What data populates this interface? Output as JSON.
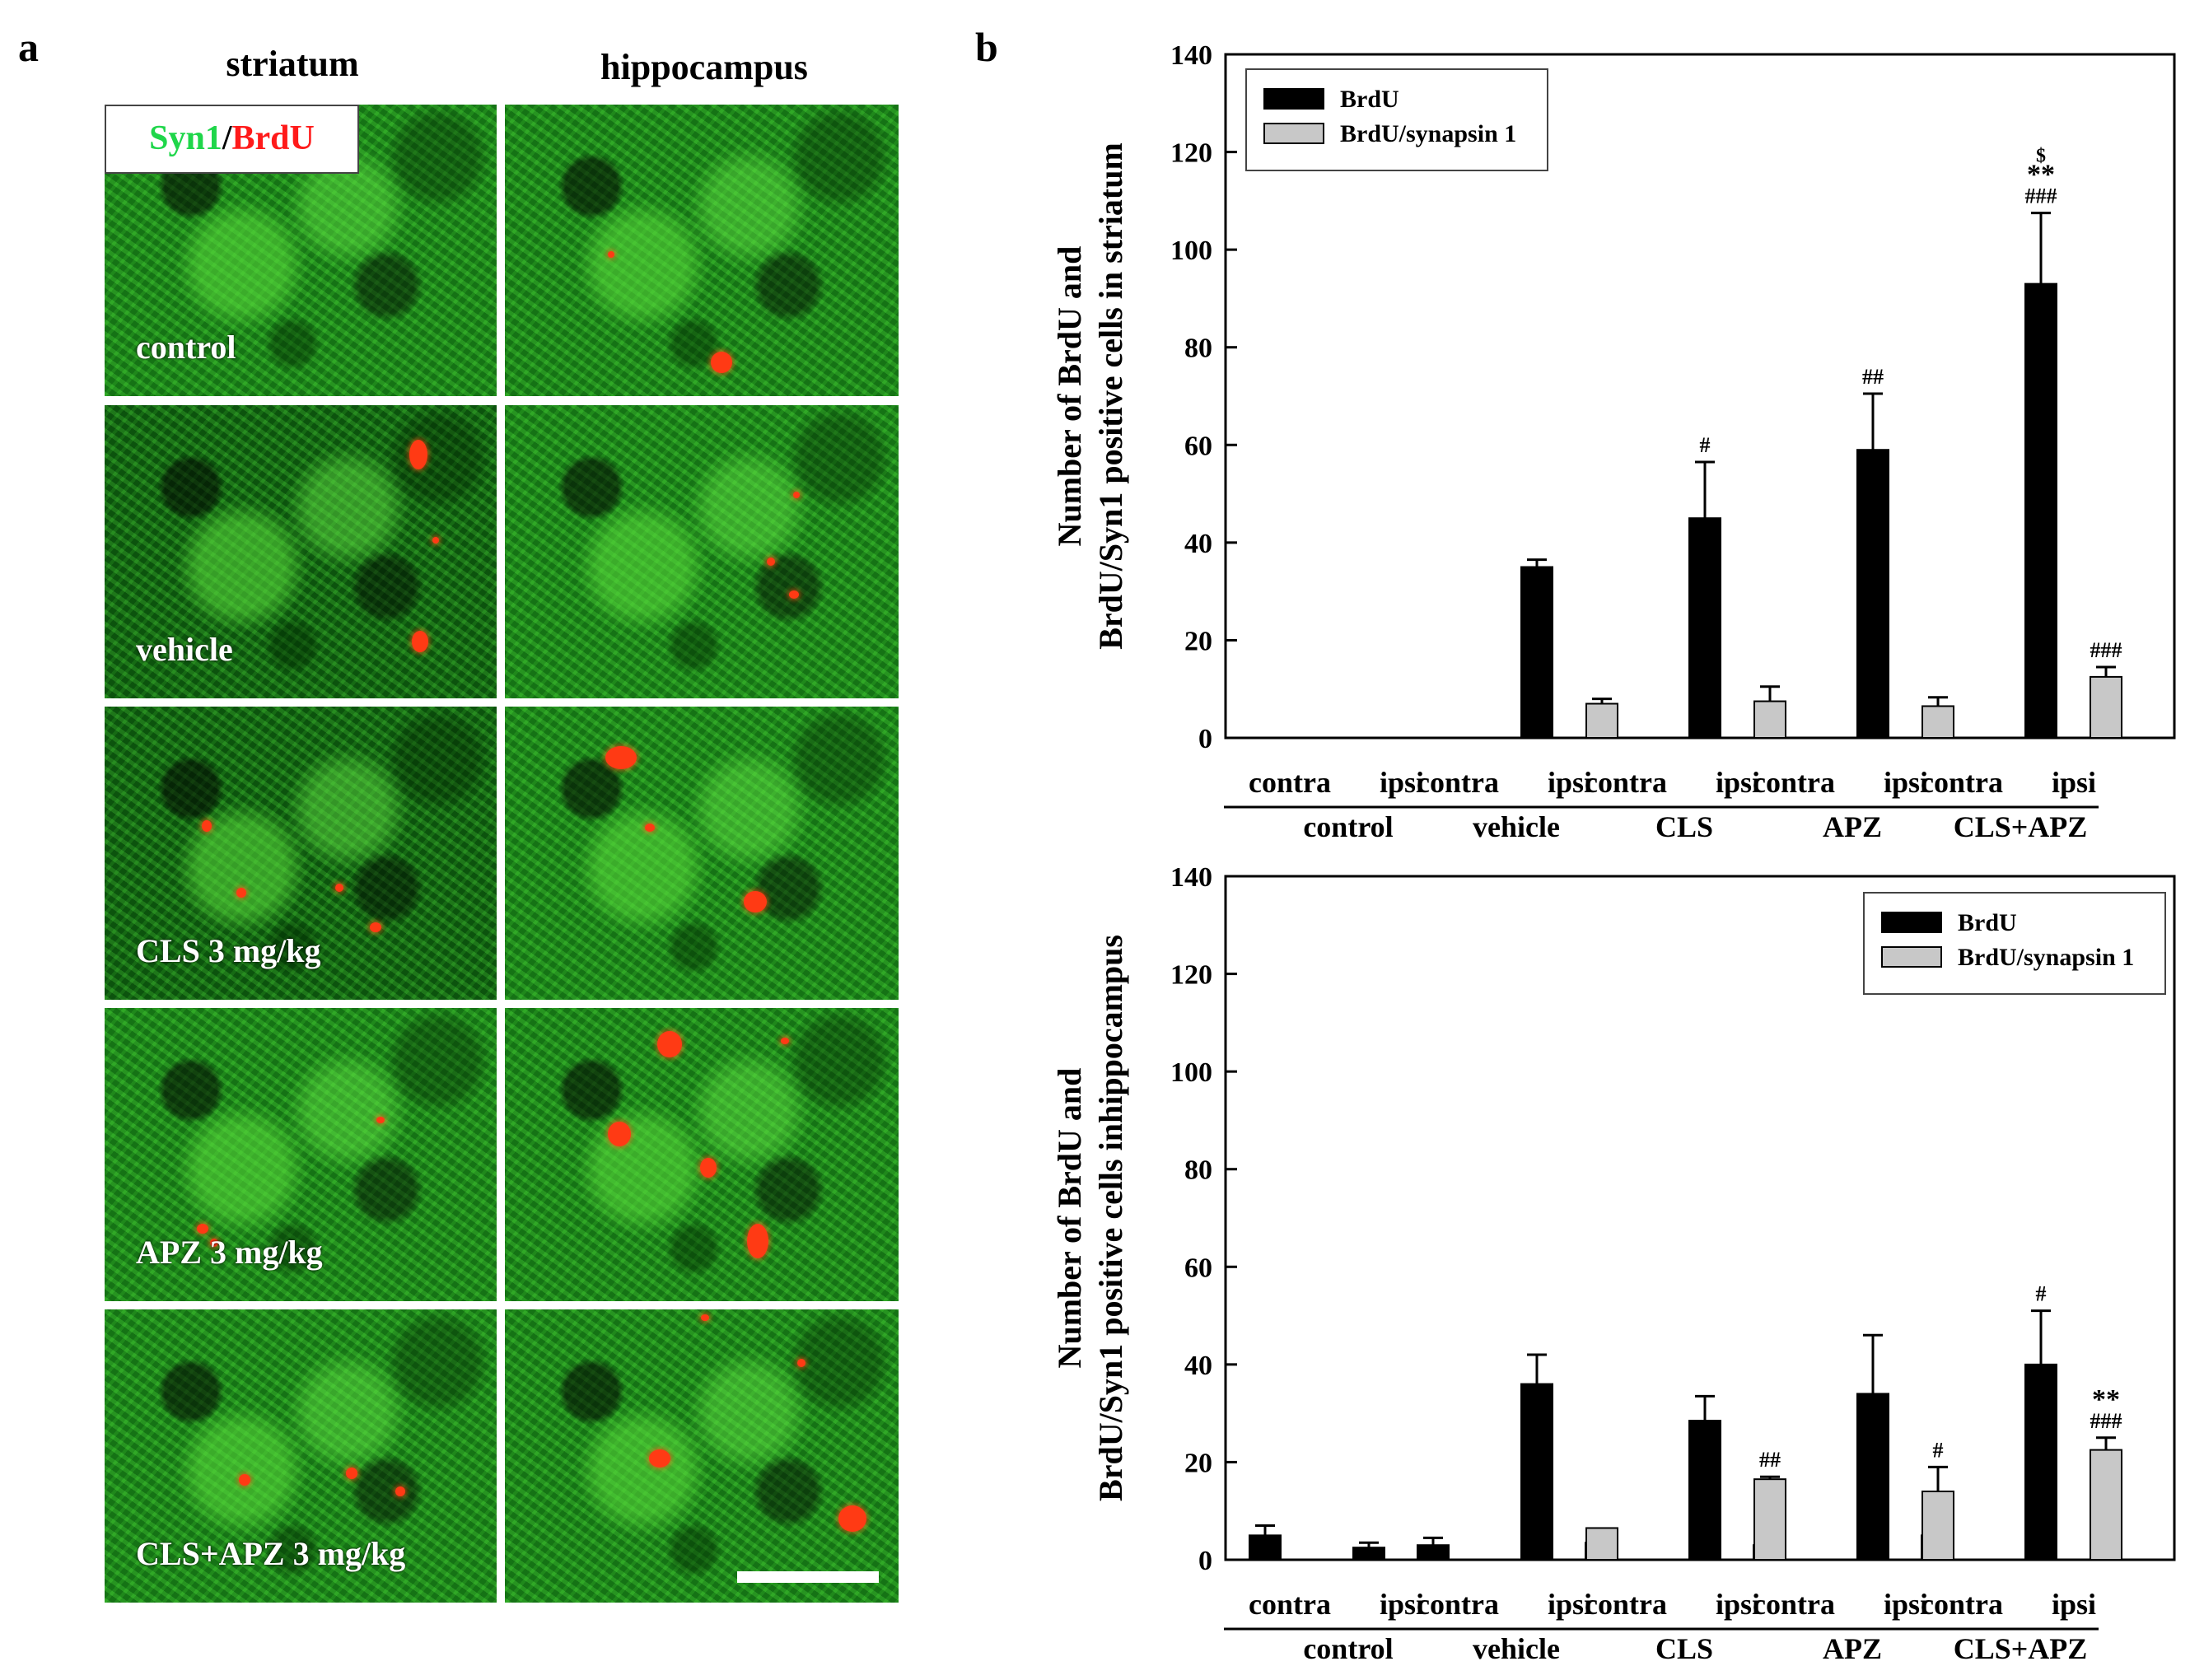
{
  "panel_a": {
    "letter": "a",
    "columns": [
      "striatum",
      "hippocampus"
    ],
    "legend": {
      "syn1": "Syn1",
      "sep": "/",
      "brdu": "BrdU"
    },
    "rows": [
      "control",
      "vehicle",
      "CLS 3 mg/kg",
      "APZ 3 mg/kg",
      "CLS+APZ 3 mg/kg"
    ]
  },
  "panel_b": {
    "letter": "b"
  },
  "colors": {
    "brdu": "#000000",
    "brdu_syn": "#c8c8c8",
    "green": "#1fd64a",
    "red": "#ff1a1a"
  },
  "chart_data": [
    {
      "type": "bar",
      "ylabel_lines": [
        "Number of BrdU and",
        "BrdU/Syn1 positive cells in striatum"
      ],
      "ylim": [
        0,
        140
      ],
      "yticks": [
        0,
        20,
        40,
        60,
        80,
        100,
        120,
        140
      ],
      "groups": [
        "control",
        "vehicle",
        "CLS",
        "APZ",
        "CLS+APZ"
      ],
      "sides": [
        "contra",
        "ipsi"
      ],
      "legend_position": "top-left",
      "series": [
        {
          "name": "BrdU",
          "values": [
            [
              0,
              0
            ],
            [
              0,
              35
            ],
            [
              0,
              45
            ],
            [
              0,
              59
            ],
            [
              0,
              93
            ]
          ],
          "errors": [
            [
              0,
              0
            ],
            [
              0,
              1.5
            ],
            [
              0,
              11.5
            ],
            [
              0,
              11.5
            ],
            [
              0,
              14.5
            ]
          ]
        },
        {
          "name": "BrdU/synapsin 1",
          "values": [
            [
              0,
              0
            ],
            [
              0,
              7
            ],
            [
              0,
              7.5
            ],
            [
              0,
              6.5
            ],
            [
              0,
              12.5
            ]
          ],
          "errors": [
            [
              0,
              0
            ],
            [
              0,
              1
            ],
            [
              0,
              3
            ],
            [
              0,
              1.8
            ],
            [
              0,
              2
            ]
          ]
        }
      ],
      "annotations": [
        {
          "group": 2,
          "side": 1,
          "series": 0,
          "lines": [
            "#"
          ]
        },
        {
          "group": 3,
          "side": 1,
          "series": 0,
          "lines": [
            "##"
          ]
        },
        {
          "group": 4,
          "side": 1,
          "series": 0,
          "lines": [
            "$",
            "**",
            "###"
          ]
        },
        {
          "group": 4,
          "side": 1,
          "series": 1,
          "lines": [
            "###"
          ]
        }
      ]
    },
    {
      "type": "bar",
      "ylabel_lines": [
        "Number of BrdU and",
        "BrdU/Syn1 positive cells inhippocampus"
      ],
      "ylim": [
        0,
        140
      ],
      "yticks": [
        0,
        20,
        40,
        60,
        80,
        100,
        120,
        140
      ],
      "groups": [
        "control",
        "vehicle",
        "CLS",
        "APZ",
        "CLS+APZ"
      ],
      "sides": [
        "contra",
        "ipsi"
      ],
      "legend_position": "top-right",
      "series": [
        {
          "name": "BrdU",
          "values": [
            [
              5,
              2.5
            ],
            [
              3,
              36
            ],
            [
              3.5,
              28.5
            ],
            [
              3,
              34
            ],
            [
              5,
              40
            ]
          ],
          "errors": [
            [
              2,
              1
            ],
            [
              1.5,
              6
            ],
            [
              1,
              5
            ],
            [
              1.5,
              12
            ],
            [
              0.5,
              11
            ]
          ]
        },
        {
          "name": "BrdU/synapsin 1",
          "values": [
            [
              0,
              0
            ],
            [
              0,
              6.5
            ],
            [
              0,
              16.5
            ],
            [
              0,
              14
            ],
            [
              0,
              22.5
            ]
          ],
          "errors": [
            [
              0,
              0
            ],
            [
              0,
              0
            ],
            [
              0,
              0.5
            ],
            [
              0,
              5
            ],
            [
              0,
              2.5
            ]
          ]
        }
      ],
      "annotations": [
        {
          "group": 2,
          "side": 1,
          "series": 1,
          "lines": [
            "##"
          ]
        },
        {
          "group": 3,
          "side": 1,
          "series": 1,
          "lines": [
            "#"
          ]
        },
        {
          "group": 4,
          "side": 1,
          "series": 0,
          "lines": [
            "#"
          ]
        },
        {
          "group": 4,
          "side": 1,
          "series": 1,
          "lines": [
            "**",
            "###"
          ]
        }
      ]
    }
  ]
}
